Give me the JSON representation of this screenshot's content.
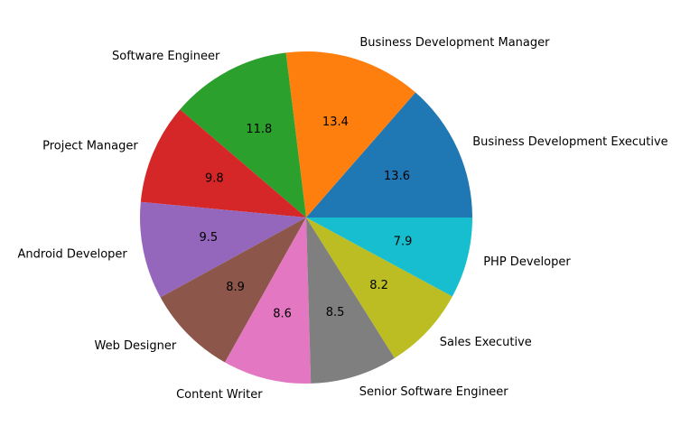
{
  "chart_data": {
    "type": "pie",
    "title": "",
    "categories": [
      "Business Development Executive",
      "Business Development Manager",
      "Software Engineer",
      "Project Manager",
      "Android Developer",
      "Web Designer",
      "Content Writer",
      "Senior Software Engineer",
      "Sales Executive",
      "PHP Developer"
    ],
    "values": [
      13.6,
      13.4,
      11.8,
      9.8,
      9.5,
      8.9,
      8.6,
      8.5,
      8.2,
      7.9
    ],
    "value_labels": [
      "13.6",
      "13.4",
      "11.8",
      "9.8",
      "9.5",
      "8.9",
      "8.6",
      "8.5",
      "8.2",
      "7.9"
    ],
    "colors": [
      "#1f77b4",
      "#ff7f0e",
      "#2ca02c",
      "#d62728",
      "#9467bd",
      "#8c564b",
      "#e377c2",
      "#7f7f7f",
      "#bcbd22",
      "#17becf"
    ],
    "start_angle_deg": 0,
    "direction": "counterclockwise",
    "legend": "none"
  }
}
